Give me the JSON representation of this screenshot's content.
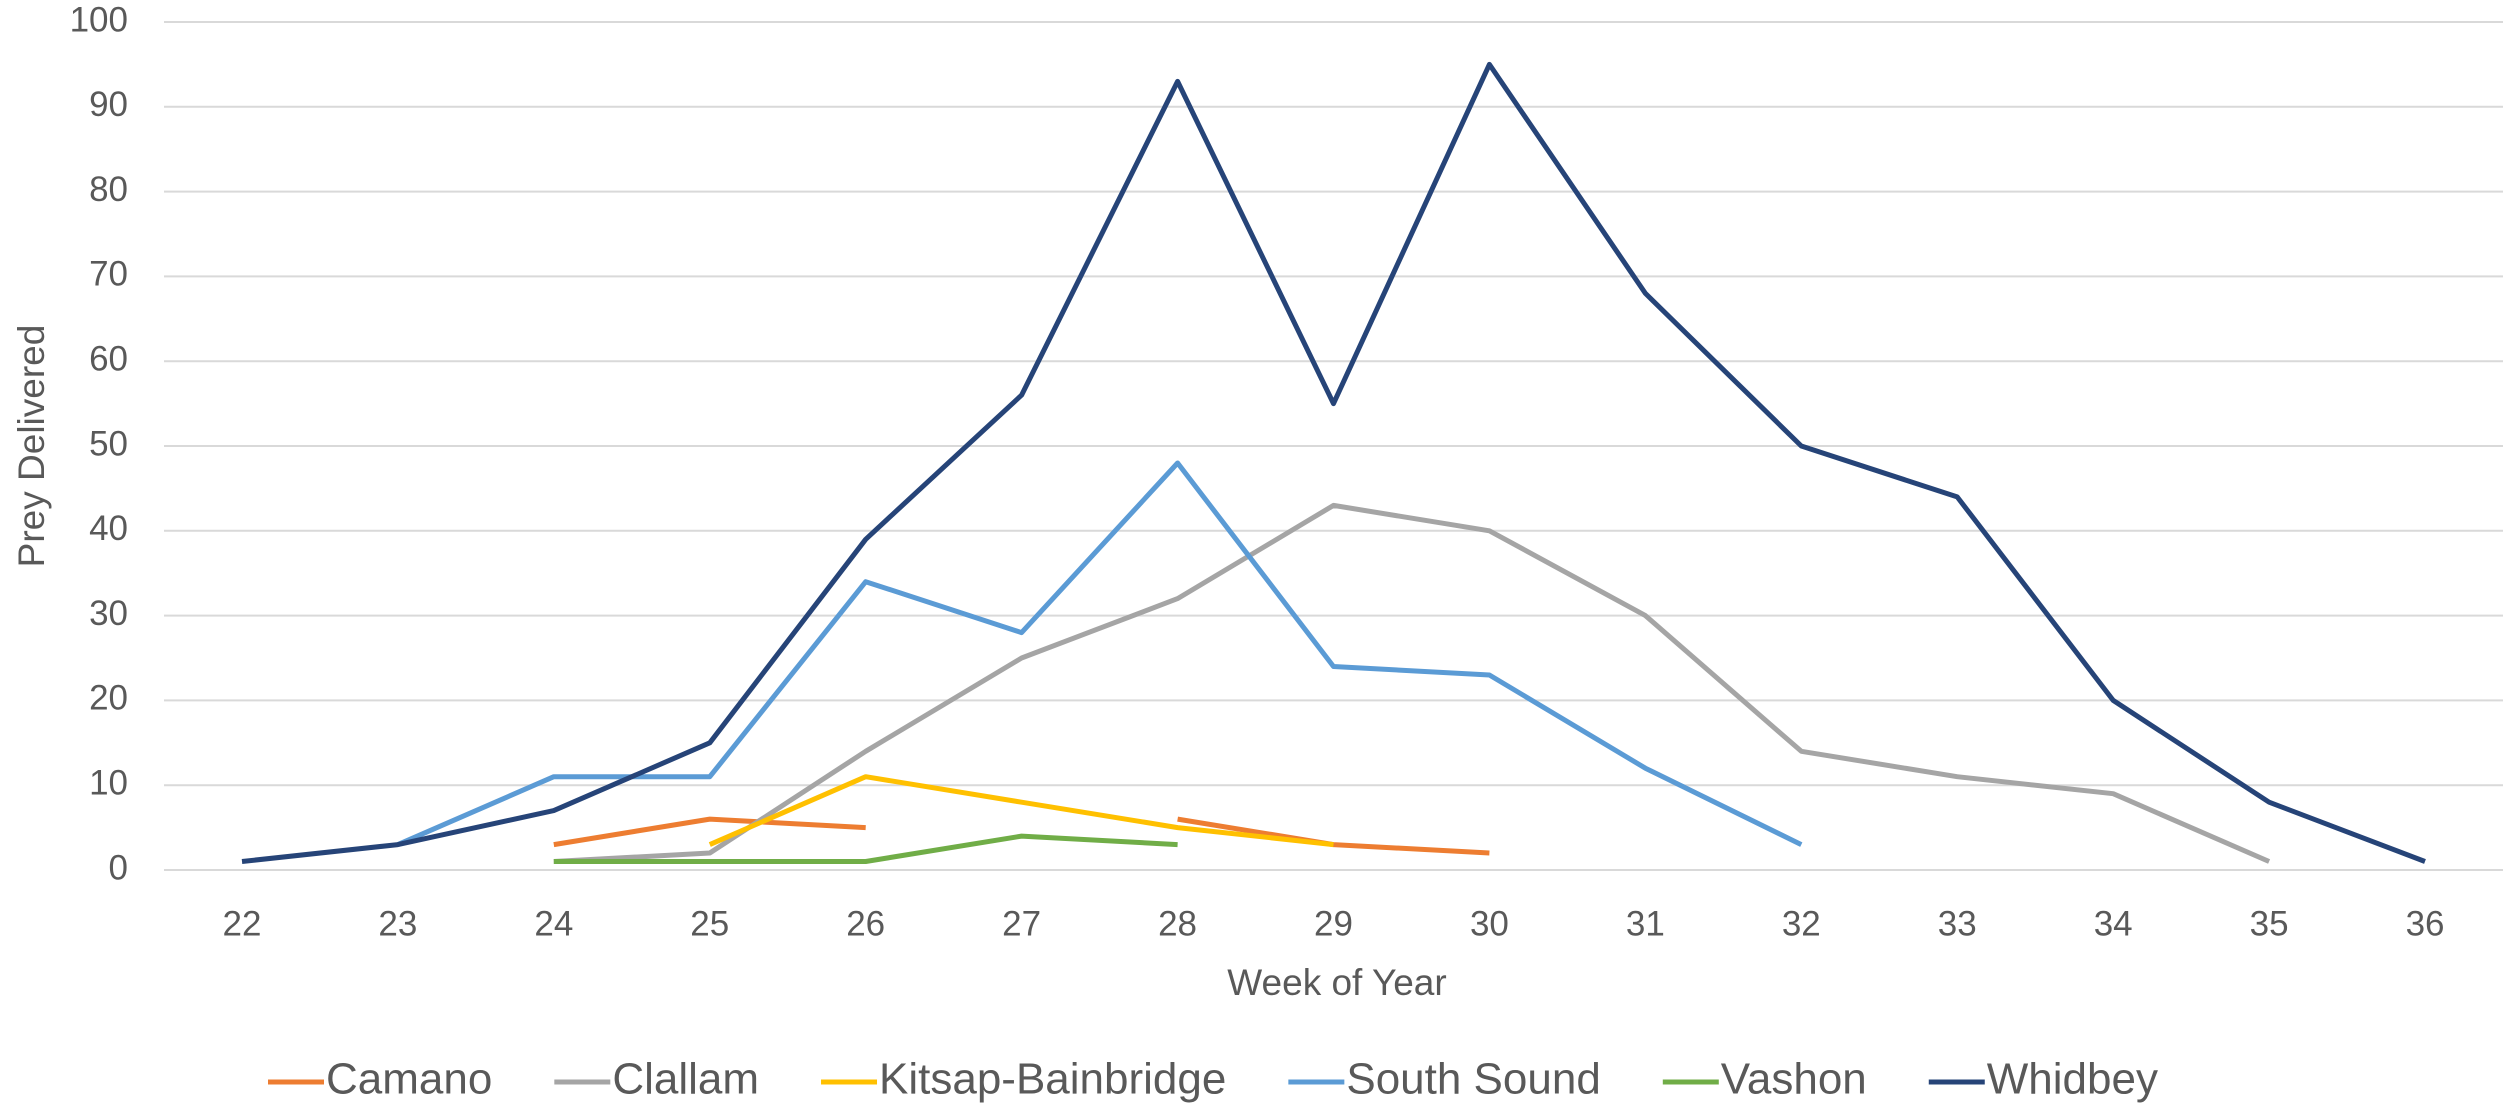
{
  "chart_data": {
    "type": "line",
    "x_label": "Week of Year",
    "y_label": "Prey Delivered",
    "categories": [
      "22",
      "23",
      "24",
      "25",
      "26",
      "27",
      "28",
      "29",
      "30",
      "31",
      "32",
      "33",
      "34",
      "35",
      "36"
    ],
    "series": [
      {
        "name": "Camano",
        "color": "#ed7d31",
        "values": [
          null,
          null,
          3,
          6,
          5,
          null,
          6,
          3,
          2,
          null,
          null,
          null,
          null,
          null,
          null
        ]
      },
      {
        "name": "Clallam",
        "color": "#a5a5a5",
        "values": [
          null,
          null,
          1,
          2,
          14,
          25,
          32,
          43,
          40,
          30,
          14,
          11,
          9,
          1,
          null
        ]
      },
      {
        "name": "Kitsap-Bainbridge",
        "color": "#ffc000",
        "values": [
          null,
          null,
          null,
          3,
          11,
          8,
          5,
          3,
          null,
          null,
          null,
          null,
          null,
          null,
          null
        ]
      },
      {
        "name": "South Sound",
        "color": "#5b9bd5",
        "values": [
          null,
          3,
          11,
          11,
          34,
          28,
          48,
          24,
          23,
          12,
          3,
          null,
          null,
          null,
          null
        ]
      },
      {
        "name": "Vashon",
        "color": "#70ad47",
        "values": [
          null,
          null,
          1,
          1,
          1,
          4,
          3,
          null,
          null,
          null,
          null,
          null,
          null,
          null,
          null
        ]
      },
      {
        "name": "Whidbey",
        "color": "#264478",
        "values": [
          1,
          3,
          7,
          15,
          39,
          56,
          93,
          55,
          95,
          68,
          50,
          44,
          20,
          8,
          1
        ]
      }
    ],
    "ylim": [
      0,
      100
    ],
    "yticks": [
      0,
      10,
      20,
      30,
      40,
      50,
      60,
      70,
      80,
      90,
      100
    ],
    "grid": true,
    "legend": "bottom"
  }
}
